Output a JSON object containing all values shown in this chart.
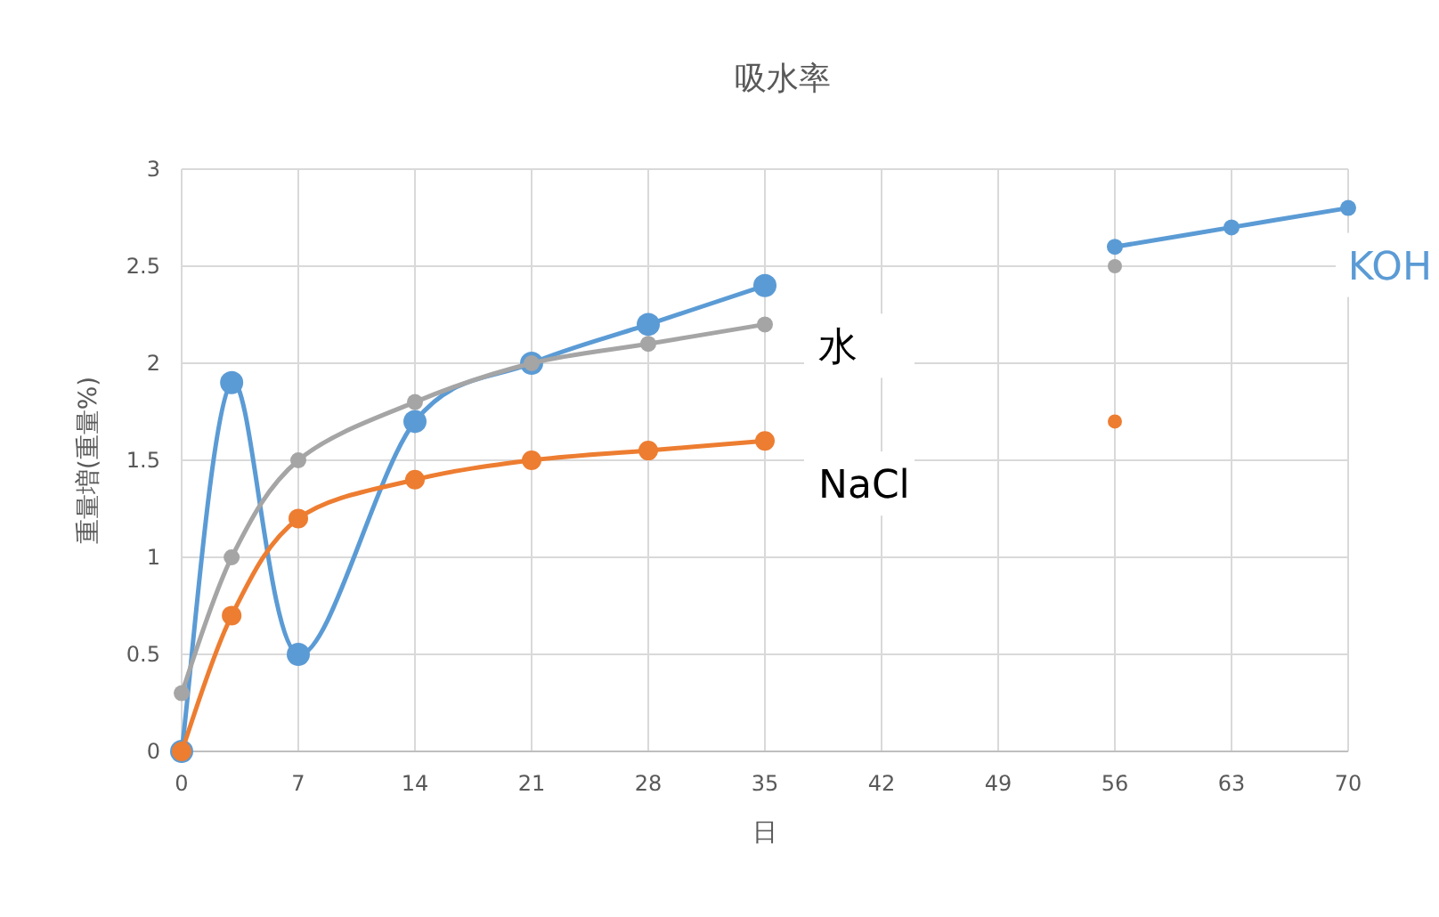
{
  "chart_data": {
    "type": "line",
    "title": "吸水率",
    "xlabel": "日",
    "ylabel": "重量増(重量%)",
    "x": [
      0,
      3,
      7,
      14,
      21,
      28,
      35
    ],
    "series": [
      {
        "name": "KOH",
        "color": "#5b9bd5",
        "values": [
          0,
          1.9,
          0.5,
          1.7,
          2.0,
          2.2,
          2.4
        ]
      },
      {
        "name": "NaCl",
        "color": "#ed7d31",
        "values": [
          0,
          0.7,
          1.2,
          1.4,
          1.5,
          1.55,
          1.6
        ]
      },
      {
        "name": "水",
        "color": "#a5a5a5",
        "values": [
          0.3,
          1.0,
          1.5,
          1.8,
          2.0,
          2.1,
          2.2
        ]
      },
      {
        "color": "#5b9bd5",
        "x": [
          56,
          63,
          70
        ],
        "values": [
          2.6,
          2.7,
          2.8
        ]
      },
      {
        "type": "scatter",
        "color": "#ed7d31",
        "x": [
          56
        ],
        "values": [
          1.7
        ]
      },
      {
        "type": "scatter",
        "color": "#a5a5a5",
        "x": [
          56
        ],
        "values": [
          2.5
        ]
      }
    ],
    "xlim": [
      0,
      70
    ],
    "ylim": [
      0,
      3
    ],
    "xticks": [
      0,
      7,
      14,
      21,
      28,
      35,
      42,
      49,
      56,
      63,
      70
    ],
    "yticks": [
      0,
      0.5,
      1,
      1.5,
      2,
      2.5,
      3
    ],
    "grid": true,
    "legend": false,
    "marker": "circle",
    "line_style": "solid"
  }
}
